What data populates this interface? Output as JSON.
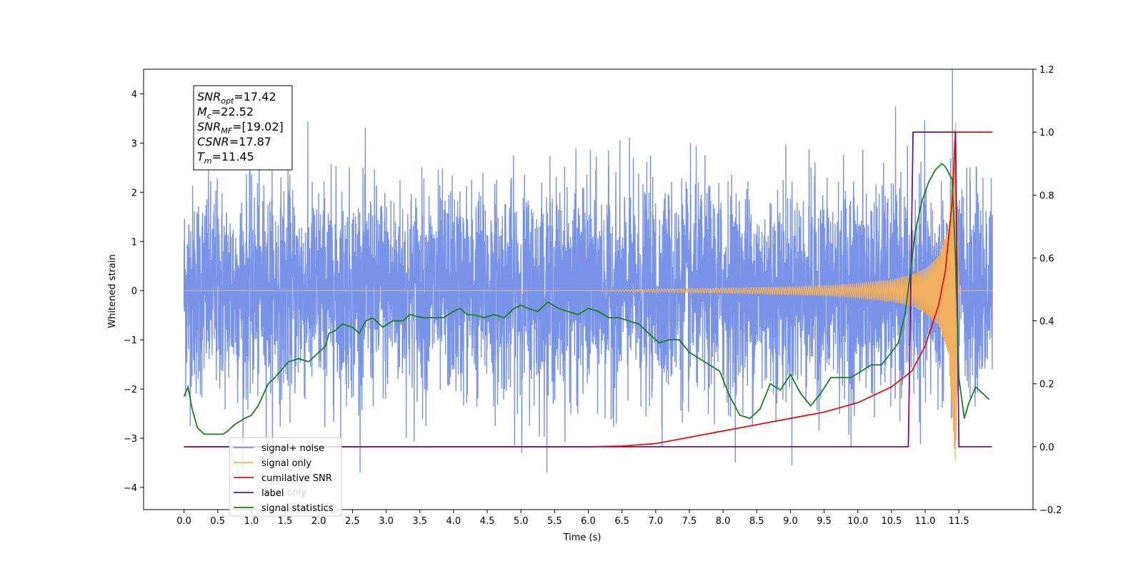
{
  "chart_data": {
    "type": "line",
    "xlabel": "Time (s)",
    "ylabel": "Whitened strain",
    "xlim": [
      -0.6,
      12.6
    ],
    "ylim": [
      -4.45,
      4.5
    ],
    "y2lim": [
      -0.2,
      1.2
    ],
    "x_tick_labels": [
      "0.0",
      "0.5",
      "1.0",
      "1.5",
      "2.0",
      "2.5",
      "3.0",
      "3.5",
      "4.0",
      "4.5",
      "5.0",
      "5.5",
      "6.0",
      "6.5",
      "7.0",
      "7.5",
      "8.0",
      "8.5",
      "9.0",
      "9.5",
      "10.0",
      "10.5",
      "11.0",
      "11.5"
    ],
    "y_tick_labels": [
      "4",
      "3",
      "2",
      "1",
      "0",
      "−1",
      "−2",
      "−3",
      "−4"
    ],
    "y2_tick_labels": [
      "1.2",
      "1.0",
      "0.8",
      "0.6",
      "0.4",
      "0.2",
      "0.0",
      "−0.2"
    ],
    "grid": false,
    "legend_position": "lower-left",
    "info_box": {
      "lines": [
        {
          "main": "SNR",
          "sub": "opt",
          "value": "=17.42"
        },
        {
          "main": "M",
          "sub": "c",
          "value": "=22.52"
        },
        {
          "main": "SNR",
          "sub": "MF",
          "value": "=[19.02]"
        },
        {
          "main": "CSNR",
          "sub": "",
          "value": "=17.87"
        },
        {
          "main": "T",
          "sub": "m",
          "value": "=11.45"
        }
      ]
    },
    "series": [
      {
        "name": "signal+ noise",
        "axis": "left",
        "color": "#7893e8",
        "x_range": [
          0.0,
          12.0
        ],
        "band_approx": {
          "typical_low": -1.6,
          "typical_high": 1.6,
          "max": 4.1,
          "min": -3.9
        }
      },
      {
        "name": "signal only",
        "axis": "left",
        "color": "#f0b060",
        "x_range": [
          0.0,
          12.0
        ],
        "envelope": {
          "x": [
            0.0,
            6.0,
            7.0,
            8.0,
            9.0,
            9.5,
            10.0,
            10.5,
            10.8,
            11.0,
            11.2,
            11.35,
            11.45,
            11.5,
            12.0
          ],
          "amp": [
            0.0,
            0.0,
            0.03,
            0.05,
            0.08,
            0.1,
            0.14,
            0.22,
            0.32,
            0.45,
            0.7,
            1.3,
            3.6,
            0.0,
            0.0
          ]
        }
      },
      {
        "name": "cumilative SNR",
        "axis": "right",
        "color": "#e81010",
        "x": [
          0.0,
          6.0,
          6.5,
          7.0,
          7.5,
          8.0,
          8.5,
          9.0,
          9.5,
          10.0,
          10.5,
          10.8,
          11.0,
          11.2,
          11.3,
          11.4,
          11.45,
          12.0
        ],
        "y": [
          0.0,
          0.0,
          0.002,
          0.01,
          0.03,
          0.05,
          0.07,
          0.09,
          0.11,
          0.14,
          0.19,
          0.24,
          0.32,
          0.45,
          0.56,
          0.78,
          1.0,
          1.0
        ]
      },
      {
        "name": "label",
        "axis": "right",
        "color": "#7a0f84",
        "x": [
          0.0,
          10.75,
          10.82,
          11.45,
          11.5,
          11.99
        ],
        "y": [
          0.0,
          0.0,
          1.0,
          1.0,
          0.0,
          0.0
        ]
      },
      {
        "name": "label only",
        "axis": "right",
        "color": "#b0b0b0",
        "hidden_in_plot": true
      },
      {
        "name": "signal statistics",
        "axis": "right",
        "color": "#1a801a",
        "x": [
          0.0,
          0.06,
          0.12,
          0.2,
          0.3,
          0.45,
          0.58,
          0.65,
          0.75,
          0.9,
          1.0,
          1.1,
          1.25,
          1.35,
          1.55,
          1.7,
          1.85,
          1.95,
          2.1,
          2.15,
          2.25,
          2.35,
          2.5,
          2.6,
          2.7,
          2.8,
          2.95,
          3.1,
          3.25,
          3.35,
          3.55,
          3.7,
          3.85,
          4.0,
          4.1,
          4.2,
          4.3,
          4.45,
          4.6,
          4.75,
          4.9,
          5.0,
          5.1,
          5.25,
          5.4,
          5.55,
          5.7,
          5.85,
          6.0,
          6.15,
          6.3,
          6.45,
          6.6,
          6.75,
          6.9,
          7.05,
          7.2,
          7.35,
          7.5,
          7.65,
          7.8,
          7.95,
          8.1,
          8.25,
          8.4,
          8.55,
          8.7,
          8.85,
          9.0,
          9.15,
          9.3,
          9.45,
          9.6,
          9.75,
          9.9,
          10.05,
          10.2,
          10.35,
          10.5,
          10.6,
          10.7,
          10.78,
          10.85,
          10.95,
          11.05,
          11.15,
          11.25,
          11.3,
          11.4,
          11.45,
          11.5,
          11.58,
          11.65,
          11.75,
          11.85,
          11.95
        ],
        "y": [
          0.16,
          0.19,
          0.12,
          0.06,
          0.04,
          0.04,
          0.04,
          0.05,
          0.07,
          0.09,
          0.1,
          0.13,
          0.2,
          0.22,
          0.27,
          0.28,
          0.27,
          0.29,
          0.32,
          0.36,
          0.37,
          0.39,
          0.38,
          0.36,
          0.4,
          0.41,
          0.38,
          0.4,
          0.4,
          0.42,
          0.41,
          0.41,
          0.41,
          0.43,
          0.44,
          0.42,
          0.42,
          0.41,
          0.42,
          0.41,
          0.44,
          0.45,
          0.44,
          0.43,
          0.46,
          0.44,
          0.43,
          0.42,
          0.44,
          0.43,
          0.41,
          0.41,
          0.4,
          0.39,
          0.36,
          0.33,
          0.34,
          0.34,
          0.3,
          0.28,
          0.26,
          0.24,
          0.16,
          0.1,
          0.09,
          0.12,
          0.2,
          0.18,
          0.23,
          0.17,
          0.13,
          0.17,
          0.22,
          0.22,
          0.22,
          0.24,
          0.26,
          0.26,
          0.3,
          0.33,
          0.42,
          0.55,
          0.68,
          0.78,
          0.84,
          0.88,
          0.9,
          0.89,
          0.85,
          0.6,
          0.22,
          0.09,
          0.14,
          0.19,
          0.17,
          0.15
        ]
      }
    ]
  }
}
